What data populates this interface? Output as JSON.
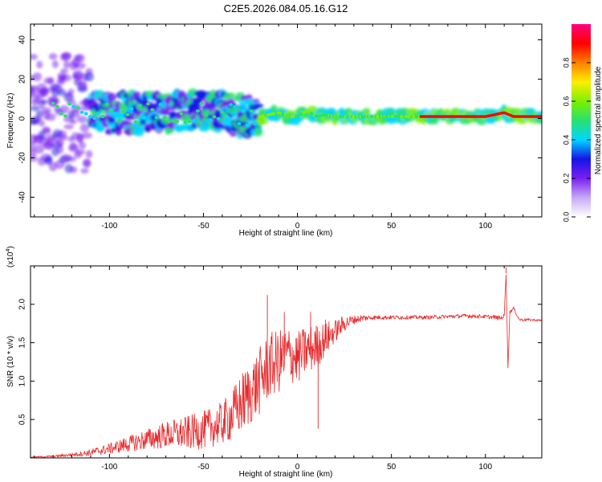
{
  "title": "C2E5.2026.084.05.16.G12",
  "colors": {
    "line": "#e8282a",
    "axis": "#000000",
    "spectrogram_background": "#ffffff"
  },
  "chart_data": [
    {
      "type": "heatmap",
      "name": "spectrogram",
      "xlabel": "Height of straight line (km)",
      "ylabel": "Frequency (Hz)",
      "xlim": [
        -142,
        130
      ],
      "ylim": [
        -50,
        48
      ],
      "xticks": [
        -100,
        -50,
        0,
        50,
        100
      ],
      "yticks": [
        -40,
        -20,
        0,
        20,
        40
      ],
      "colorbar": {
        "label": "Normalized spectral amplitude",
        "range": [
          0,
          1
        ],
        "ticks": [
          "0.0",
          "0.2",
          "0.4",
          "0.6",
          "0.8"
        ],
        "tick_values": [
          0.0,
          0.2,
          0.4,
          0.6,
          0.8
        ],
        "colormap": [
          "#ffffff",
          "#c7a9f5",
          "#7a1ff0",
          "#1414e6",
          "#00d7ff",
          "#28e06e",
          "#7ef000",
          "#ffee00",
          "#ff8000",
          "#ff0000",
          "#ff0080"
        ]
      },
      "ridge": {
        "x": [
          -142,
          -120,
          -100,
          -80,
          -60,
          -45,
          -35,
          -25,
          -20,
          -15,
          -10,
          -5,
          0,
          5,
          10,
          15,
          20,
          30,
          50,
          70,
          90,
          100,
          110,
          115,
          130
        ],
        "y": [
          3,
          3,
          3,
          3,
          3,
          4,
          3,
          0,
          1,
          2,
          3,
          1,
          1,
          4,
          1,
          2,
          1,
          1,
          1,
          1,
          1,
          1,
          3,
          1,
          1
        ]
      }
    },
    {
      "type": "line",
      "name": "snr",
      "xlabel": "Height of straight line (km)",
      "ylabel": "SNR (10 * v/v)",
      "multiplier": "(x10",
      "multiplier_exp": "4",
      "xlim": [
        -142,
        130
      ],
      "ylim": [
        0,
        2.5
      ],
      "xticks": [
        -100,
        -50,
        0,
        50,
        100
      ],
      "yticks": [
        0.5,
        1.0,
        1.5,
        2.0
      ],
      "ytick_labels": [
        "0.5",
        "1.0",
        "1.5",
        "2.0"
      ],
      "envelope": {
        "x": [
          -142,
          -130,
          -120,
          -110,
          -100,
          -90,
          -80,
          -70,
          -60,
          -50,
          -40,
          -35,
          -30,
          -25,
          -20,
          -15,
          -10,
          -5,
          0,
          5,
          10,
          15,
          20,
          25,
          30,
          35,
          40,
          50,
          60,
          70,
          80,
          90,
          100,
          105,
          108,
          110,
          111,
          112,
          113,
          115,
          118,
          122,
          130
        ],
        "y": [
          0.01,
          0.02,
          0.04,
          0.07,
          0.12,
          0.18,
          0.24,
          0.3,
          0.32,
          0.36,
          0.45,
          0.55,
          0.7,
          0.85,
          1.0,
          1.2,
          1.25,
          1.35,
          1.3,
          1.4,
          1.45,
          1.55,
          1.65,
          1.75,
          1.8,
          1.82,
          1.83,
          1.83,
          1.83,
          1.83,
          1.84,
          1.85,
          1.84,
          1.83,
          1.82,
          1.85,
          2.4,
          1.15,
          1.9,
          1.95,
          1.8,
          1.8,
          1.79
        ]
      },
      "noise": {
        "x": [
          -142,
          -120,
          -100,
          -80,
          -60,
          -40,
          -30,
          -20,
          -10,
          0,
          10,
          20,
          30,
          40,
          60,
          100,
          108,
          116,
          130
        ],
        "amp": [
          0.005,
          0.02,
          0.07,
          0.14,
          0.22,
          0.28,
          0.4,
          0.45,
          0.42,
          0.35,
          0.3,
          0.15,
          0.06,
          0.03,
          0.025,
          0.025,
          0.03,
          0.02,
          0.01
        ]
      },
      "spikes": [
        {
          "x": -16,
          "y": 2.12
        },
        {
          "x": -7,
          "y": 1.9
        },
        {
          "x": 7,
          "y": 1.9
        },
        {
          "x": 11,
          "y": 0.38
        },
        {
          "x": 15,
          "y": 1.8
        },
        {
          "x": 111,
          "y": 2.48
        },
        {
          "x": 112,
          "y": 1.15
        }
      ]
    }
  ]
}
